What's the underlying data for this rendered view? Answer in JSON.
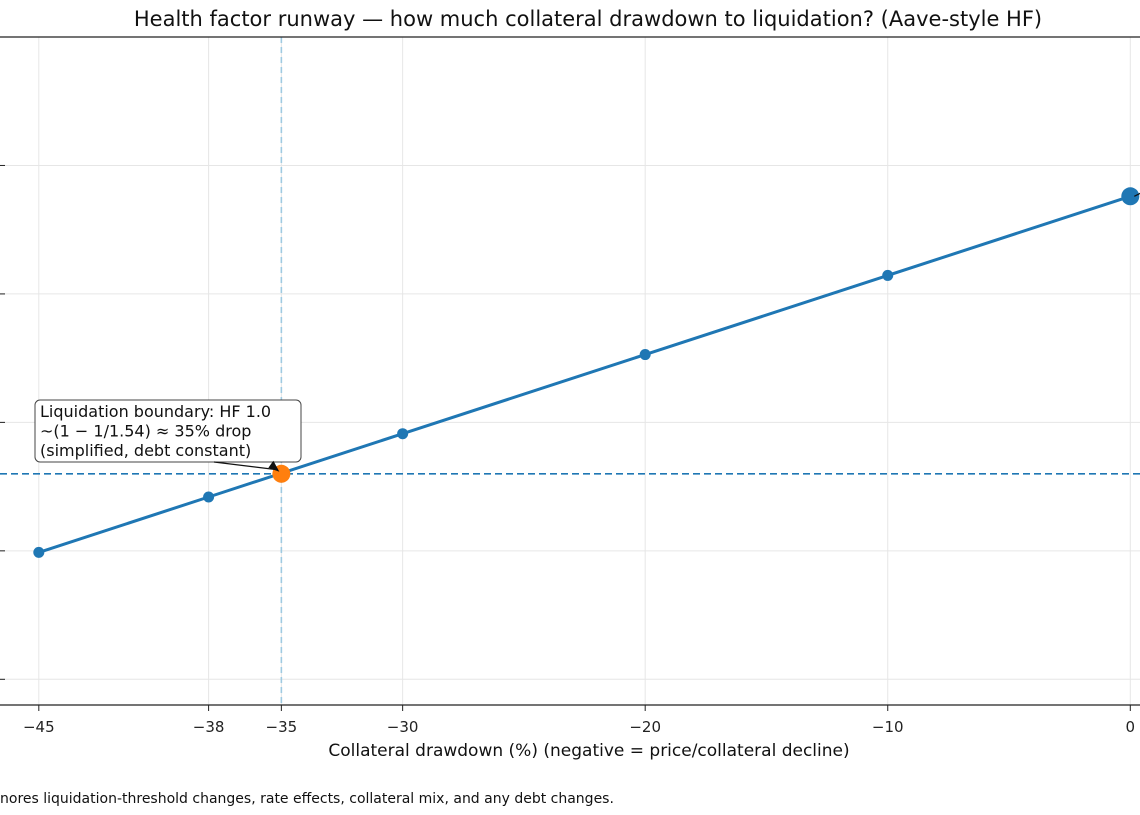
{
  "chart_data": {
    "type": "line",
    "title": "Health factor runway — how much collateral drawdown to liquidation? (Aave-style HF)",
    "xlabel": "Collateral drawdown (%)  (negative = price/collateral decline)",
    "ylabel": "",
    "footnote": "nores liquidation-threshold changes, rate effects, collateral mix, and any debt changes.",
    "x_ticks": [
      -45,
      -38,
      -35,
      -30,
      -20,
      -10,
      0
    ],
    "x_tick_labels": [
      "−45",
      "−38",
      "−35",
      "−30",
      "−20",
      "−10",
      "0"
    ],
    "xlim": [
      -46.6,
      0.4
    ],
    "ylim": [
      0.55,
      1.85
    ],
    "y_gridlines": [
      0.6,
      0.85,
      1.1,
      1.35,
      1.6
    ],
    "grid": true,
    "series": [
      {
        "name": "Health factor",
        "color": "#1f77b4",
        "x": [
          -45,
          -38,
          -30,
          -20,
          -10,
          0
        ],
        "y": [
          0.847,
          0.9548,
          1.078,
          1.232,
          1.386,
          1.54
        ]
      }
    ],
    "current_point": {
      "x": 0,
      "y": 1.54,
      "color": "#1f77b4"
    },
    "liquidation_point": {
      "x": -35,
      "y": 1.0,
      "color": "#ff7f0e"
    },
    "reference_lines": {
      "horizontal_hf": 1.0,
      "vertical_drawdown": -35,
      "horizontal_color": "#1f77b4",
      "vertical_color": "#9ecae1"
    },
    "annotation": {
      "lines": [
        "Liquidation boundary: HF 1.0",
        "~(1 − 1/1.54) ≈ 35% drop",
        "(simplified, debt constant)"
      ],
      "points_to": {
        "x": -35,
        "y": 1.0
      }
    }
  }
}
